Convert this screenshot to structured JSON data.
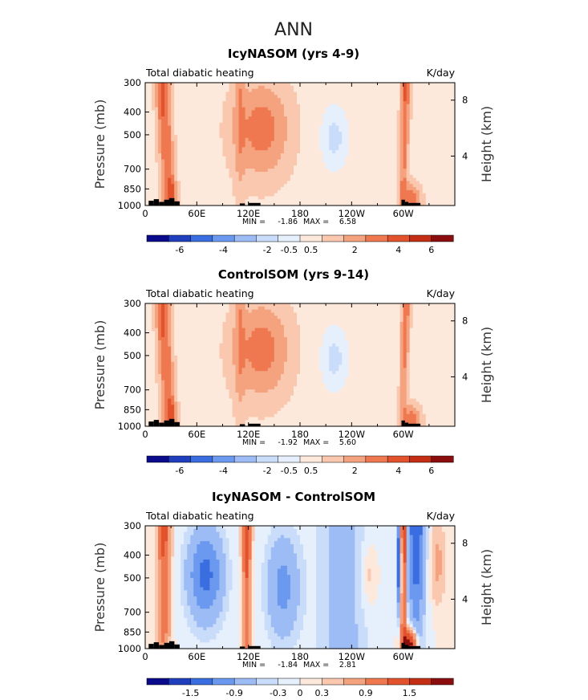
{
  "figure": {
    "title": "ANN"
  },
  "chart_data": [
    {
      "type": "heatmap",
      "title": "IcyNASOM (yrs 4-9)",
      "left_label": "Total diabatic heating",
      "units": "K/day",
      "ylabel": "Pressure (mb)",
      "y2label": "Height (km)",
      "xticks": [
        "0",
        "60E",
        "120E",
        "180",
        "120W",
        "60W"
      ],
      "yticks": [
        "300",
        "400",
        "500",
        "700",
        "850",
        "1000"
      ],
      "y2ticks": [
        "8",
        "4"
      ],
      "ylim": [
        1000,
        300
      ],
      "stats": {
        "min_label": "MIN =",
        "min": "-1.86",
        "max_label": "MAX =",
        "max": "6.58"
      },
      "colorbar_labels": [
        "-6",
        "-4",
        "-2",
        "-0.5",
        "0.5",
        "2",
        "4",
        "6"
      ],
      "field": "warm_dominant"
    },
    {
      "type": "heatmap",
      "title": "ControlSOM (yrs 9-14)",
      "left_label": "Total diabatic heating",
      "units": "K/day",
      "ylabel": "Pressure (mb)",
      "y2label": "Height (km)",
      "xticks": [
        "0",
        "60E",
        "120E",
        "180",
        "120W",
        "60W"
      ],
      "yticks": [
        "300",
        "400",
        "500",
        "700",
        "850",
        "1000"
      ],
      "y2ticks": [
        "8",
        "4"
      ],
      "ylim": [
        1000,
        300
      ],
      "stats": {
        "min_label": "MIN =",
        "min": "-1.92",
        "max_label": "MAX =",
        "max": "5.60"
      },
      "colorbar_labels": [
        "-6",
        "-4",
        "-2",
        "-0.5",
        "0.5",
        "2",
        "4",
        "6"
      ],
      "field": "warm_dominant"
    },
    {
      "type": "heatmap",
      "title": "IcyNASOM - ControlSOM",
      "left_label": "Total diabatic heating",
      "units": "K/day",
      "ylabel": "Pressure (mb)",
      "y2label": "Height (km)",
      "xticks": [
        "0",
        "60E",
        "120E",
        "180",
        "120W",
        "60W"
      ],
      "yticks": [
        "300",
        "400",
        "500",
        "700",
        "850",
        "1000"
      ],
      "y2ticks": [
        "8",
        "4"
      ],
      "ylim": [
        1000,
        300
      ],
      "stats": {
        "min_label": "MIN =",
        "min": "-1.84",
        "max_label": "MAX =",
        "max": "2.81"
      },
      "colorbar_labels": [
        "-1.5",
        "-0.9",
        "-0.3",
        "0",
        "0.3",
        "0.9",
        "1.5"
      ],
      "field": "difference"
    }
  ],
  "colors": {
    "scale": [
      "#0a0a8c",
      "#1f3fbf",
      "#3a6ee0",
      "#6b99ef",
      "#9dbcf5",
      "#c9dcf9",
      "#e6effc",
      "#fde8dc",
      "#f9c8ae",
      "#f5a27e",
      "#ef7850",
      "#e2522c",
      "#c42e14",
      "#8c0d0d"
    ],
    "topography": "#000000"
  }
}
